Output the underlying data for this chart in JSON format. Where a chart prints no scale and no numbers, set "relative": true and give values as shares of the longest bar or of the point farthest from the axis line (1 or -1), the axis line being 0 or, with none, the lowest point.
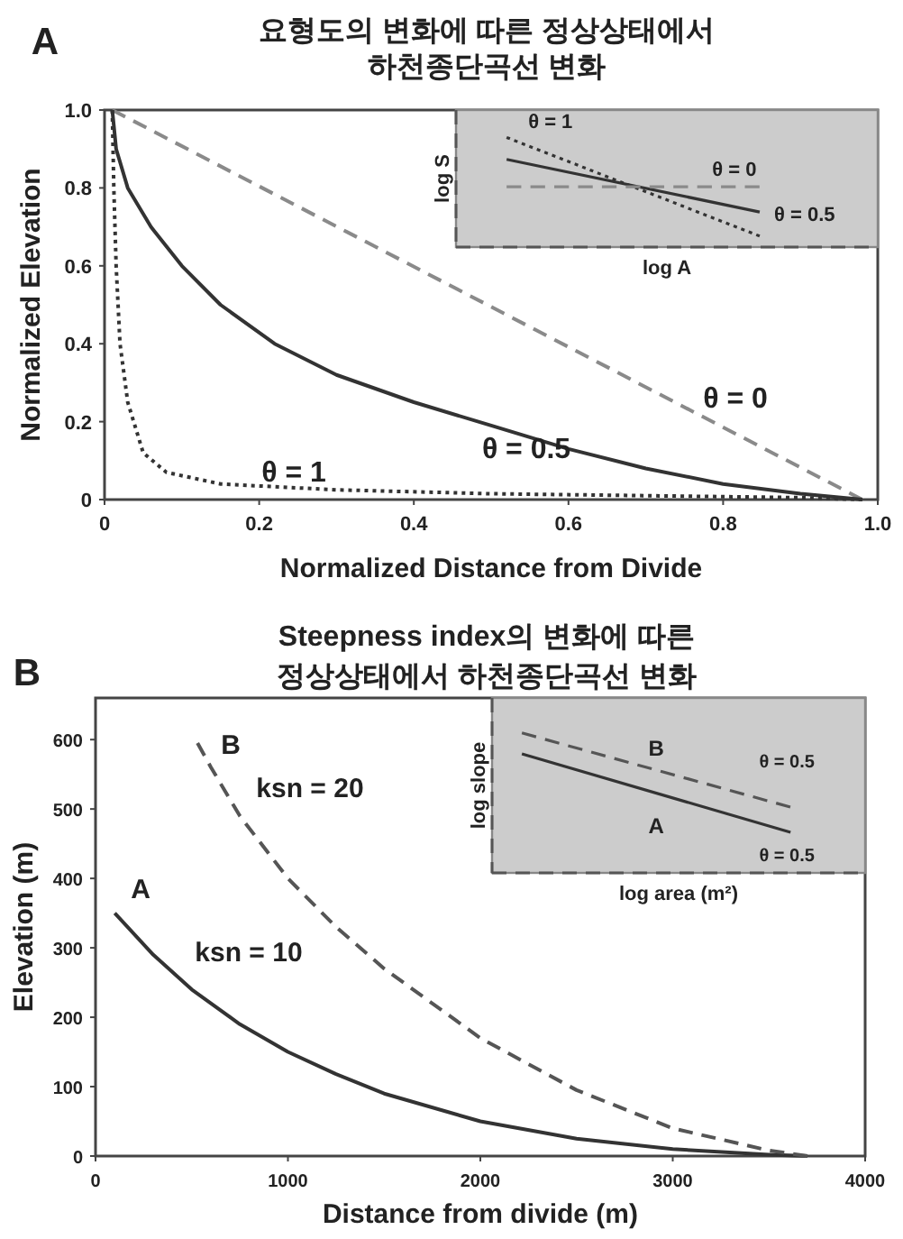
{
  "chart_data": [
    {
      "type": "line",
      "title": "요형도의 변화에 따른 정상상태에서\n하천종단곡선 변화",
      "xlabel": "Normalized Distance from Divide",
      "ylabel": "Normalized Elevation",
      "xlim": [
        0,
        1
      ],
      "ylim": [
        0,
        1
      ],
      "xticks": [
        0,
        0.2,
        0.4,
        0.6,
        0.8,
        {
          "value": 1,
          "label": "1.0"
        }
      ],
      "yticks": [
        0,
        0.2,
        0.4,
        0.6,
        0.8,
        {
          "value": 1,
          "label": "1.0"
        }
      ],
      "series": [
        {
          "line_style": "dashed",
          "color": "#8a8a8a",
          "x": [
            0.01,
            0.98
          ],
          "values": [
            1,
            0
          ]
        },
        {
          "line_style": "solid",
          "color": "#333333",
          "x": [
            0.01,
            0.015,
            0.03,
            0.06,
            0.1,
            0.15,
            0.22,
            0.3,
            0.4,
            0.5,
            0.6,
            0.7,
            0.8,
            0.9,
            0.98
          ],
          "values": [
            1,
            0.9,
            0.8,
            0.7,
            0.6,
            0.5,
            0.4,
            0.32,
            0.25,
            0.19,
            0.13,
            0.08,
            0.04,
            0.015,
            0
          ]
        },
        {
          "line_style": "dotted",
          "color": "#333333",
          "x": [
            0.01,
            0.012,
            0.015,
            0.02,
            0.03,
            0.05,
            0.08,
            0.15,
            0.3,
            0.5,
            0.7,
            0.9,
            0.98
          ],
          "values": [
            1,
            0.8,
            0.6,
            0.4,
            0.25,
            0.12,
            0.07,
            0.04,
            0.025,
            0.015,
            0.01,
            0.005,
            0
          ]
        }
      ],
      "annotations": [
        "A",
        "θ = 0",
        "θ = 0.5",
        "θ = 1"
      ]
    },
    {
      "type": "line",
      "relative": true,
      "xlabel": "log A",
      "ylabel": "log S",
      "categories": [
        null,
        null
      ],
      "series": [
        {
          "name": "θ = 1",
          "line_style": "dotted",
          "color": "#333333",
          "values": [
            1,
            0.1
          ]
        },
        {
          "name": "θ = 0.5",
          "line_style": "solid",
          "color": "#333333",
          "values": [
            0.8,
            0.32
          ]
        },
        {
          "name": "θ = 0",
          "line_style": "dashed",
          "color": "#8a8a8a",
          "values": [
            0.55,
            0.55
          ]
        }
      ]
    },
    {
      "type": "line",
      "title": "Steepness index의 변화에 따른\n정상상태에서 하천종단곡선 변화",
      "xlabel": "Distance from divide (m)",
      "ylabel": "Elevation (m)",
      "xlim": [
        0,
        4000
      ],
      "ylim": [
        0,
        660
      ],
      "xticks": [
        0,
        1000,
        2000,
        3000,
        4000
      ],
      "yticks": [
        0,
        100,
        200,
        300,
        400,
        500,
        600
      ],
      "series": [
        {
          "line_style": "solid",
          "color": "#333333",
          "x": [
            100,
            300,
            500,
            750,
            1000,
            1250,
            1500,
            2000,
            2500,
            3000,
            3500,
            3700
          ],
          "values": [
            350,
            290,
            240,
            190,
            150,
            118,
            90,
            50,
            25,
            10,
            2,
            0
          ]
        },
        {
          "line_style": "dashed",
          "color": "#555555",
          "x": [
            530,
            600,
            750,
            1000,
            1250,
            1500,
            2000,
            2500,
            3000,
            3500,
            3700
          ],
          "values": [
            595,
            560,
            490,
            400,
            330,
            270,
            170,
            95,
            40,
            8,
            0
          ]
        }
      ],
      "annotations": [
        "B",
        "A",
        "ksn = 10",
        "B",
        "ksn = 20"
      ]
    },
    {
      "type": "line",
      "relative": true,
      "xlabel": "log area (m²)",
      "ylabel": "log slope",
      "categories": [
        null,
        null
      ],
      "series": [
        {
          "name": "B",
          "line_style": "dashed",
          "color": "#555555",
          "values": [
            1,
            0.47
          ]
        },
        {
          "name": "A",
          "line_style": "solid",
          "color": "#333333",
          "values": [
            0.85,
            0.29
          ]
        }
      ],
      "annotations": [
        "θ = 0.5",
        "θ = 0.5"
      ]
    }
  ]
}
